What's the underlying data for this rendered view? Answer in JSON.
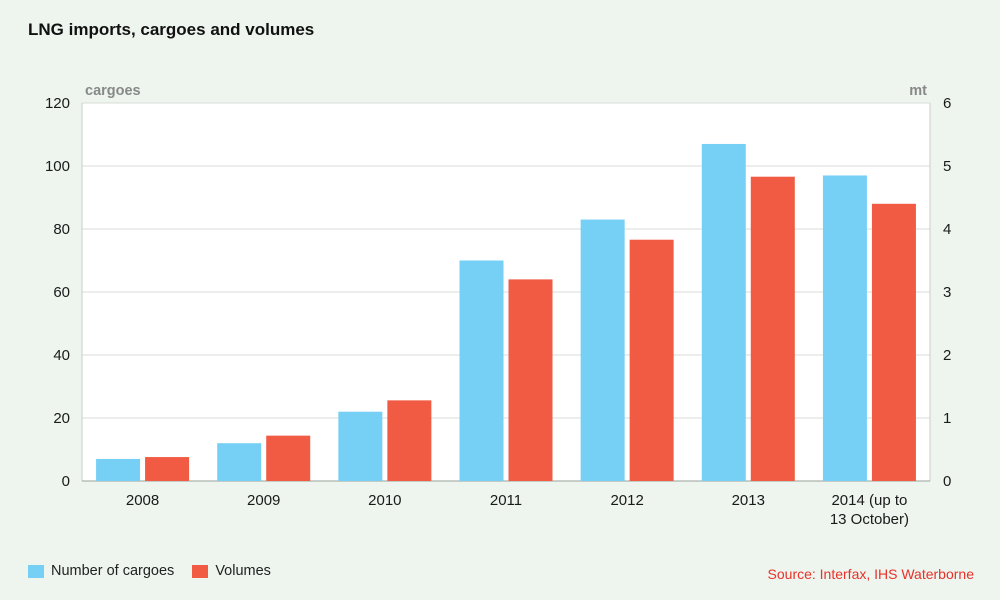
{
  "title": "LNG imports, cargoes and volumes",
  "source": "Source: Interfax, IHS Waterborne",
  "chart_data": {
    "type": "bar",
    "title": "LNG imports, cargoes and volumes",
    "categories": [
      "2008",
      "2009",
      "2010",
      "2011",
      "2012",
      "2013",
      "2014 (up to 13 October)"
    ],
    "category_lines": [
      [
        "2008"
      ],
      [
        "2009"
      ],
      [
        "2010"
      ],
      [
        "2011"
      ],
      [
        "2012"
      ],
      [
        "2013"
      ],
      [
        "2014 (up to",
        "13 October)"
      ]
    ],
    "left_axis": {
      "label": "cargoes",
      "ylim": [
        0,
        120
      ],
      "ticks": [
        0,
        20,
        40,
        60,
        80,
        100,
        120
      ]
    },
    "right_axis": {
      "label": "mt",
      "ylim": [
        0,
        6
      ],
      "ticks": [
        0,
        1,
        2,
        3,
        4,
        5,
        6
      ]
    },
    "series": [
      {
        "name": "Number of cargoes",
        "axis": "left",
        "color": "#76d0f5",
        "values": [
          7,
          12,
          22,
          70,
          83,
          107,
          97
        ]
      },
      {
        "name": "Volumes",
        "axis": "right",
        "color": "#f15a43",
        "values": [
          0.38,
          0.72,
          1.28,
          3.2,
          3.83,
          4.83,
          4.4
        ]
      }
    ],
    "grid": true,
    "legend": "bottom-left"
  }
}
